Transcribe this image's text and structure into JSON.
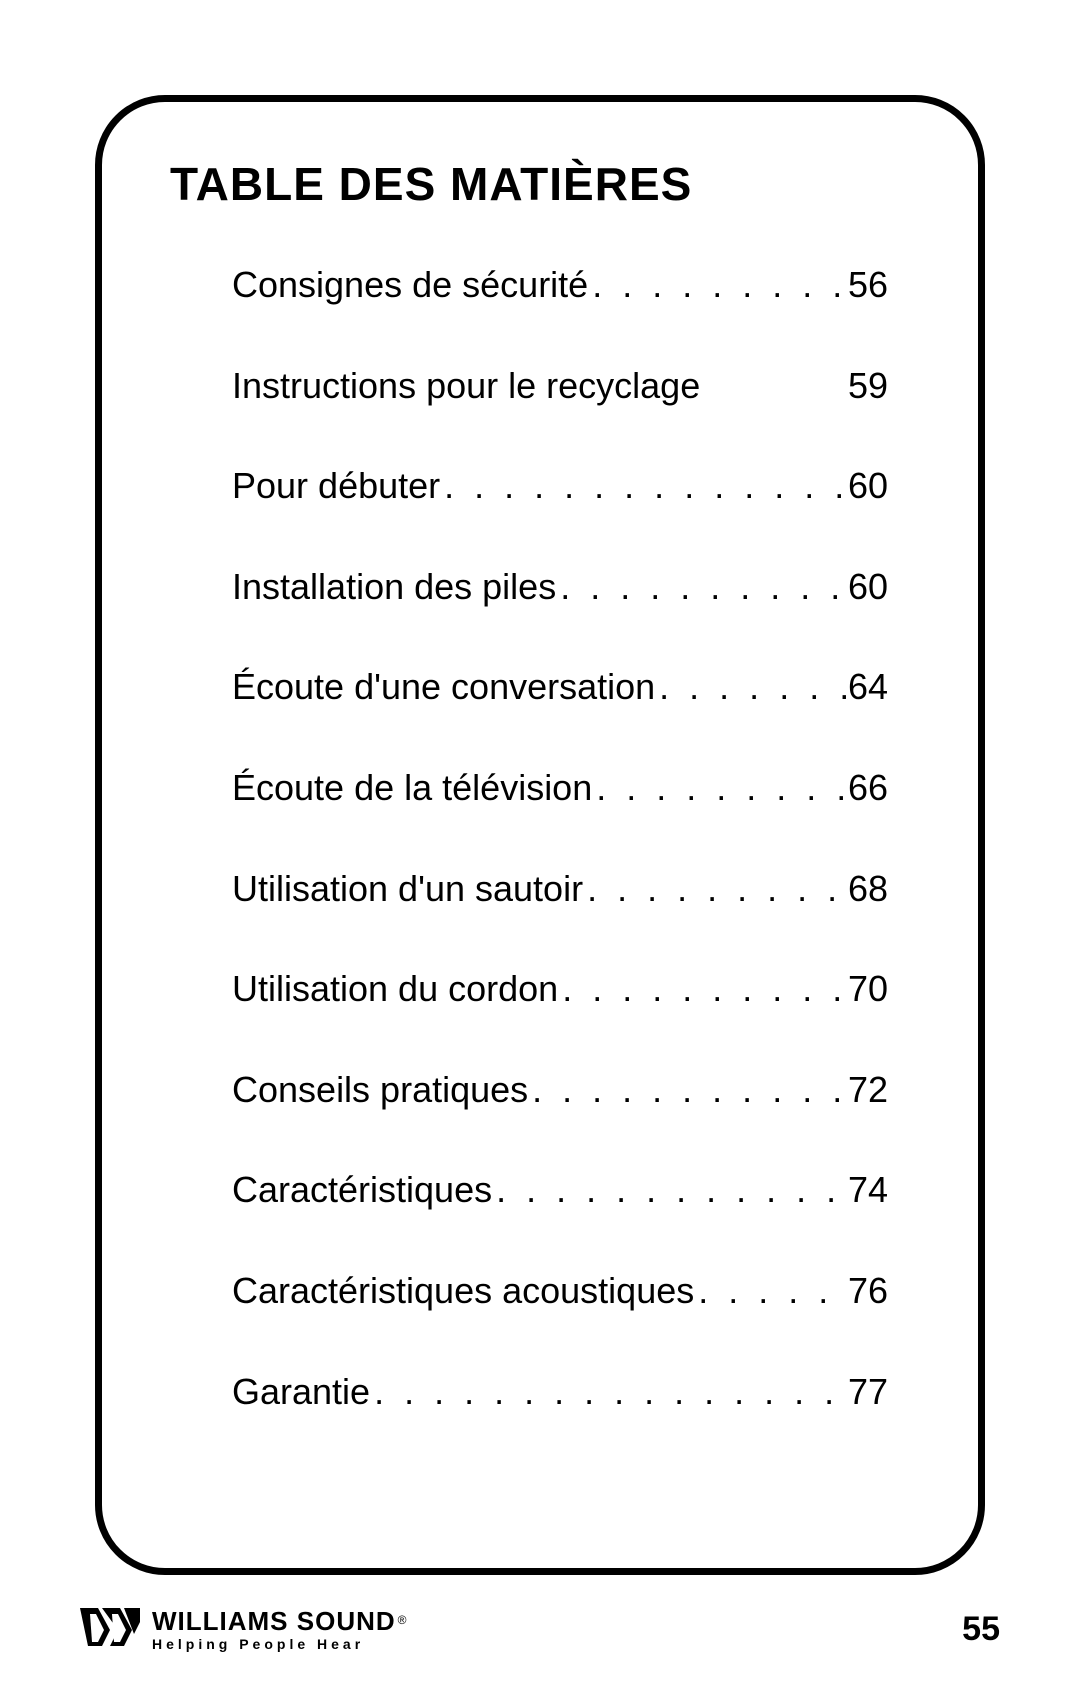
{
  "title": "TABLE DES MATIÈRES",
  "toc": [
    {
      "label": "Consignes de sécurité",
      "page": "56",
      "dots": true
    },
    {
      "label": "Instructions pour le recyclage",
      "page": "59",
      "dots": false
    },
    {
      "label": "Pour débuter",
      "page": "60",
      "dots": true
    },
    {
      "label": "Installation des piles",
      "page": "60",
      "dots": true
    },
    {
      "label": "Écoute d'une conversation",
      "page": "64",
      "dots": true
    },
    {
      "label": "Écoute de la télévision",
      "page": "66",
      "dots": true
    },
    {
      "label": "Utilisation d'un sautoir",
      "page": "68",
      "dots": true
    },
    {
      "label": "Utilisation du cordon",
      "page": "70",
      "dots": true
    },
    {
      "label": "Conseils pratiques",
      "page": "72",
      "dots": true
    },
    {
      "label": "Caractéristiques",
      "page": "74",
      "dots": true
    },
    {
      "label": "Caractéristiques acoustiques",
      "page": "76",
      "dots": true
    },
    {
      "label": "Garantie",
      "page": "77",
      "dots": true
    }
  ],
  "brand": {
    "name": "WILLIAMS SOUND",
    "reg": "®",
    "tagline": "Helping People Hear"
  },
  "page_number": "55",
  "colors": {
    "text": "#000000",
    "background": "#ffffff",
    "border": "#000000"
  },
  "typography": {
    "title_fontsize": 46,
    "toc_fontsize": 36,
    "brand_name_fontsize": 26,
    "brand_tag_fontsize": 14,
    "page_num_fontsize": 34
  },
  "layout": {
    "frame_border_width": 7,
    "frame_border_radius": 70
  }
}
